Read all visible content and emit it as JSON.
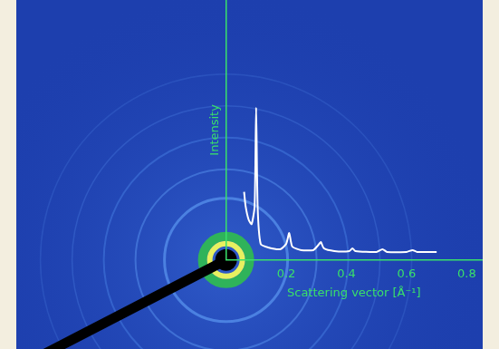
{
  "chart_data": {
    "type": "line",
    "x_label": "Scattering vector [Å⁻¹]",
    "y_label": "Intensity",
    "x": [
      0.06,
      0.065,
      0.075,
      0.085,
      0.095,
      0.1,
      0.105,
      0.115,
      0.14,
      0.18,
      0.2,
      0.21,
      0.22,
      0.25,
      0.29,
      0.305,
      0.315,
      0.325,
      0.36,
      0.41,
      0.42,
      0.43,
      0.5,
      0.52,
      0.535,
      0.6,
      0.62,
      0.635,
      0.7
    ],
    "values": [
      76,
      60,
      45,
      40,
      60,
      170,
      60,
      18,
      14,
      12,
      18,
      30,
      15,
      11,
      11,
      16,
      20,
      13,
      10,
      10,
      13,
      10,
      9,
      12,
      9,
      9,
      11,
      9,
      9
    ],
    "color": "#ffffff",
    "xlim": [
      0,
      0.85
    ],
    "xticks": [
      0.2,
      0.4,
      0.6,
      0.8
    ],
    "ylim": [
      0,
      290
    ],
    "yticks": [],
    "tick_labels": "x",
    "grid": false,
    "marker": "none",
    "line_style": "solid"
  }
}
